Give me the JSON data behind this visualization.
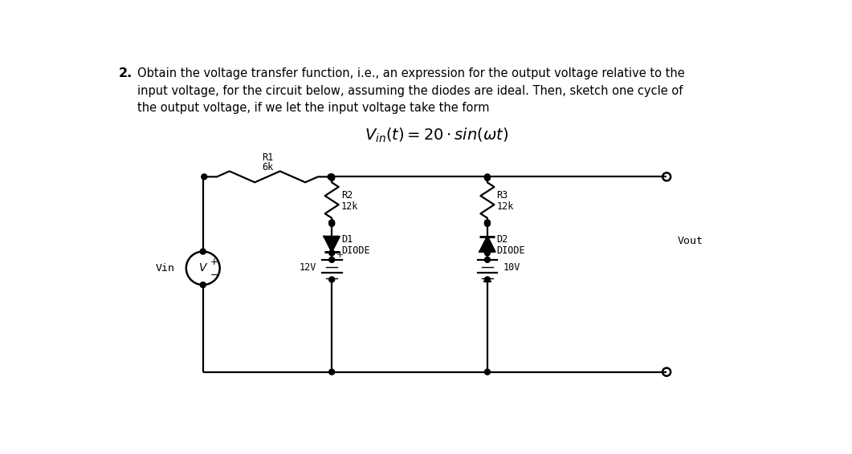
{
  "bg_color": "#ffffff",
  "text_line1": "Obtain the voltage transfer function, i.e., an expression for the output voltage relative to the",
  "text_line2": "input voltage, for the circuit below, assuming the diodes are ideal. Then, sketch one cycle of",
  "text_line3": "the output voltage, if we let the input voltage take the form",
  "formula": "$V_{in}(t) = 20 \\cdot sin(\\omega t)$",
  "label_2": "2.",
  "label_R1": "R1",
  "label_6k": "6k",
  "label_R2": "R2",
  "label_12k_1": "12k",
  "label_R3": "R3",
  "label_12k_2": "12k",
  "label_D1": "D1",
  "label_DIODE1": "DIODE",
  "label_D2": "D2",
  "label_DIODE2": "DIODE",
  "label_12V": "12V",
  "label_10V": "10V",
  "label_Vin": "Vin",
  "label_V": "V",
  "label_Vout": "Vout",
  "label_plus": "+",
  "label_minus": "−",
  "font_text": 10.5,
  "font_label": 9.0,
  "font_comp": 8.5,
  "font_formula": 14
}
